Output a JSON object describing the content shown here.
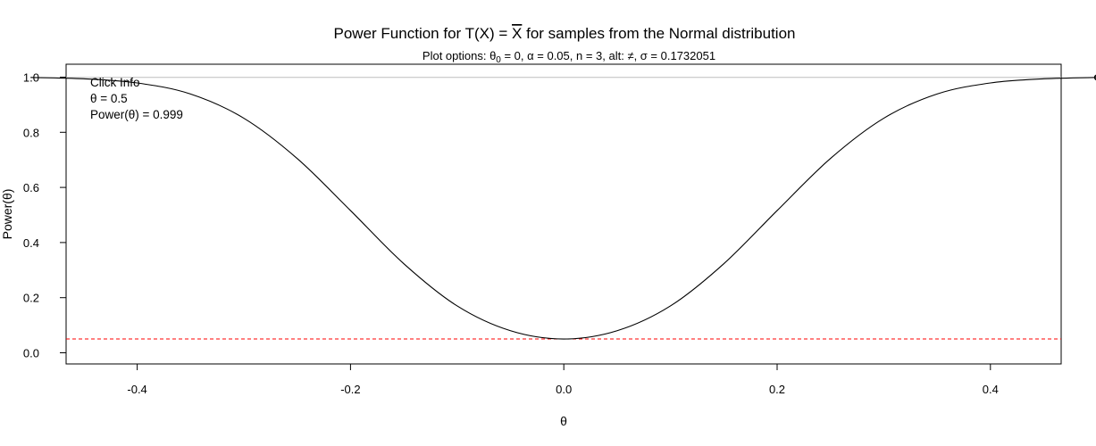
{
  "chart_data": {
    "type": "line",
    "title_prefix": "Power Function for T(X) = ",
    "title_stat": "X",
    "title_suffix": " for samples from the Normal distribution",
    "subtitle_prefix": "Plot options: θ",
    "subtitle_sub": "0",
    "subtitle_rest": " = 0, α = 0.05, n = 3, alt: ≠, σ = 0.1732051",
    "xlabel": "θ",
    "ylabel": "Power(θ)",
    "xlim": [
      -0.5,
      0.5
    ],
    "ylim": [
      0.0,
      1.0
    ],
    "xticks": [
      -0.4,
      -0.2,
      0.0,
      0.2,
      0.4
    ],
    "xtick_labels": [
      "-0.4",
      "-0.2",
      "0.0",
      "0.2",
      "0.4"
    ],
    "yticks": [
      0.0,
      0.2,
      0.4,
      0.6,
      0.8,
      1.0
    ],
    "ytick_labels": [
      "0.0",
      "0.2",
      "0.4",
      "0.6",
      "0.8",
      "1.0"
    ],
    "alpha_line": 0.05,
    "alpha_line_color": "#ff0000",
    "curve_color": "#000000",
    "crosshair_color": "#bebebe",
    "series": [
      {
        "x": [
          -0.5,
          -0.45,
          -0.4,
          -0.35,
          -0.3,
          -0.25,
          -0.2,
          -0.15,
          -0.1,
          -0.05,
          0.0,
          0.05,
          0.1,
          0.15,
          0.2,
          0.25,
          0.3,
          0.35,
          0.4,
          0.45,
          0.5
        ],
        "values": [
          0.999,
          0.994,
          0.979,
          0.939,
          0.851,
          0.705,
          0.516,
          0.323,
          0.17,
          0.08,
          0.05,
          0.08,
          0.17,
          0.323,
          0.516,
          0.705,
          0.851,
          0.939,
          0.979,
          0.994,
          0.999
        ]
      }
    ],
    "selected_point": {
      "x": 0.5,
      "y": 0.999
    },
    "click_info": {
      "heading": "Click Info",
      "theta_line": "θ = 0.5",
      "power_line": "Power(θ) = 0.999"
    }
  }
}
